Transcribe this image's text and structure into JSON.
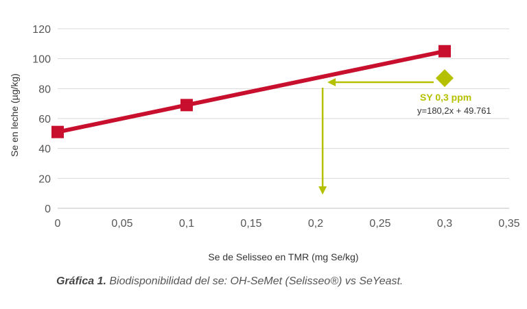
{
  "chart_data": {
    "type": "line",
    "xlabel": "Se de Selisseo en TMR (mg Se/kg)",
    "ylabel": "Se en leche  (µg/kg)",
    "xlim": [
      0,
      0.35
    ],
    "ylim": [
      0,
      120
    ],
    "xticks": [
      0,
      0.05,
      0.1,
      0.15,
      0.2,
      0.25,
      0.3,
      0.35
    ],
    "xtick_labels": [
      "0",
      "0,05",
      "0,1",
      "0,15",
      "0,2",
      "0,25",
      "0,3",
      "0,35"
    ],
    "yticks": [
      0,
      20,
      40,
      60,
      80,
      100,
      120
    ],
    "ytick_labels": [
      "0",
      "20",
      "40",
      "60",
      "80",
      "100",
      "120"
    ],
    "grid": "horizontal",
    "series": [
      {
        "x": [
          0,
          0.1,
          0.3
        ],
        "y": [
          51,
          69,
          105
        ],
        "color": "#c8102e",
        "marker": "square"
      }
    ],
    "annotations": [
      {
        "label": "SY 0,3 ppm",
        "equation": "y=180,2x + 49.761",
        "x": 0.3,
        "y": 87,
        "color": "#b5c000",
        "marker": "diamond",
        "arrow_to_x": 0.207
      }
    ]
  },
  "caption": {
    "bold": "Gráfica 1.",
    "text": " Biodisponibilidad del se: OH-SeMet (Selisseo®) vs SeYeast."
  }
}
